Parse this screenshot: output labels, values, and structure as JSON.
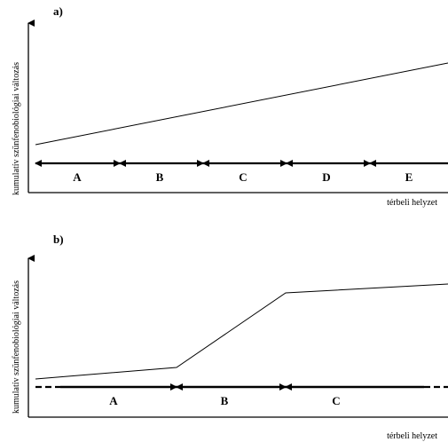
{
  "panels": [
    {
      "letter": "a)",
      "ylabel": "kumulatív szünfenobiológiai változás",
      "xlabel": "térbeli helyzet",
      "segments": [
        "A",
        "B",
        "C",
        "D",
        "E"
      ],
      "profile": "linear"
    },
    {
      "letter": "b)",
      "ylabel": "kumulatív szünfenobiológiai változás",
      "xlabel": "térbeli helyzet",
      "segments": [
        "A",
        "B",
        "C"
      ],
      "profile": "sigmoid-step"
    }
  ]
}
